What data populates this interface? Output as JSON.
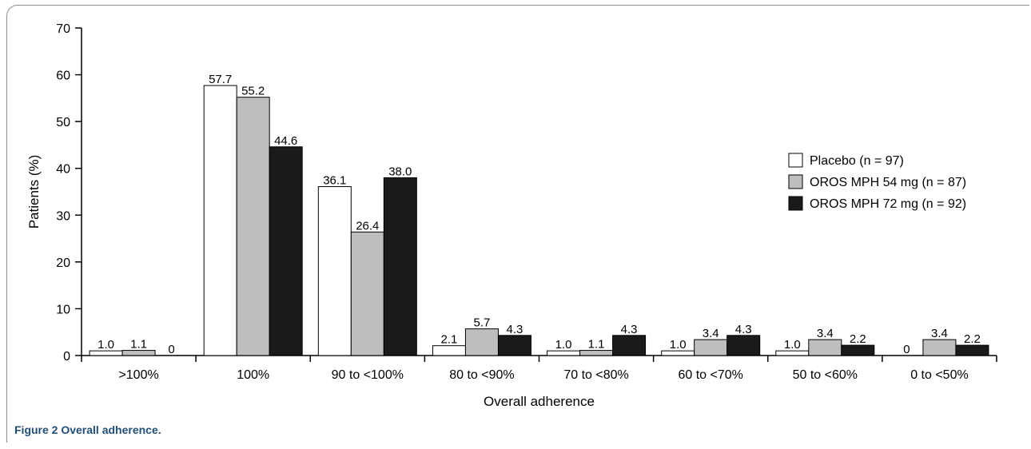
{
  "figure": {
    "caption": "Figure 2 Overall adherence."
  },
  "chart_data": {
    "type": "bar",
    "title": "",
    "xlabel": "Overall adherence",
    "ylabel": "Patients (%)",
    "ylim": [
      0,
      70
    ],
    "yticks": [
      0,
      10,
      20,
      30,
      40,
      50,
      60,
      70
    ],
    "categories": [
      ">100%",
      "100%",
      "90 to <100%",
      "80 to <90%",
      "70 to <80%",
      "60 to <70%",
      "50 to <60%",
      "0 to <50%"
    ],
    "series": [
      {
        "name": "Placebo (n = 97)",
        "color": "#ffffff",
        "values": [
          1.0,
          57.7,
          36.1,
          2.1,
          1.0,
          1.0,
          1.0,
          0
        ],
        "labels": [
          "1.0",
          "57.7",
          "36.1",
          "2.1",
          "1.0",
          "1.0",
          "1.0",
          "0"
        ]
      },
      {
        "name": "OROS MPH 54 mg (n = 87)",
        "color": "#bdbec0",
        "values": [
          1.1,
          55.2,
          26.4,
          5.7,
          1.1,
          3.4,
          3.4,
          3.4
        ],
        "labels": [
          "1.1",
          "55.2",
          "26.4",
          "5.7",
          "1.1",
          "3.4",
          "3.4",
          "3.4"
        ]
      },
      {
        "name": "OROS MPH 72 mg (n = 92)",
        "color": "#1a1a1a",
        "values": [
          0,
          44.6,
          38.0,
          4.3,
          4.3,
          4.3,
          2.2,
          2.2
        ],
        "labels": [
          "0",
          "44.6",
          "38.0",
          "4.3",
          "4.3",
          "4.3",
          "2.2",
          "2.2"
        ]
      }
    ],
    "legend": "right",
    "grid": false
  }
}
